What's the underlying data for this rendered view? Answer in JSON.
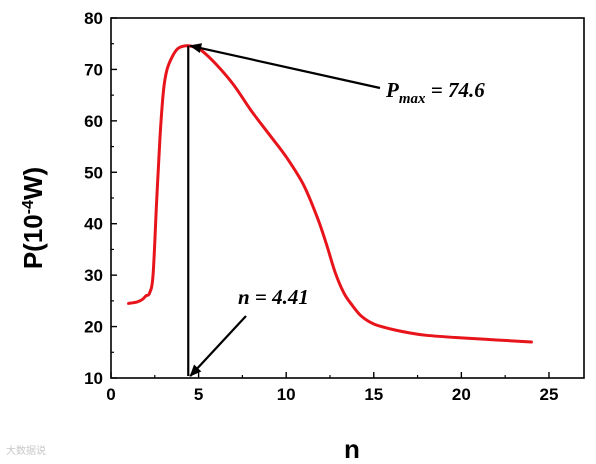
{
  "chart_data": {
    "type": "line",
    "xlabel": "n",
    "ylabel_main": "P(10",
    "ylabel_sup": "-4",
    "ylabel_tail": "W)",
    "xlim": [
      0,
      27
    ],
    "ylim": [
      10,
      80
    ],
    "xticks": [
      0,
      5,
      10,
      15,
      20,
      25
    ],
    "yticks": [
      10,
      20,
      30,
      40,
      50,
      60,
      70,
      80
    ],
    "line_color": "#e8141b",
    "series": [
      {
        "x": [
          1.0,
          1.5,
          1.8,
          2.0,
          2.2,
          2.4,
          2.6,
          2.8,
          3.0,
          3.2,
          3.5,
          3.8,
          4.1,
          4.41,
          4.8,
          5.2,
          6.0,
          7.0,
          8.0,
          9.0,
          10.0,
          11.0,
          11.8,
          12.3,
          12.8,
          13.3,
          13.8,
          14.3,
          15.0,
          16.0,
          17.0,
          18.0,
          20.0,
          22.0,
          24.0
        ],
        "y": [
          24.5,
          24.8,
          25.3,
          26.0,
          26.5,
          30.0,
          44.0,
          57.0,
          66.0,
          70.0,
          72.5,
          74.0,
          74.5,
          74.6,
          74.3,
          73.6,
          71.0,
          67.0,
          62.0,
          57.5,
          53.0,
          47.5,
          41.0,
          36.0,
          30.5,
          26.5,
          24.0,
          22.0,
          20.5,
          19.5,
          18.8,
          18.3,
          17.8,
          17.4,
          17.0
        ]
      }
    ],
    "annotations": {
      "pmax": {
        "label_prefix": "P",
        "label_sub": "max",
        "label_suffix": " = 74.6",
        "x": 4.41,
        "y": 74.6
      },
      "nopt": {
        "label": "n = 4.41",
        "x": 4.41
      }
    }
  },
  "watermark": "大数据说"
}
